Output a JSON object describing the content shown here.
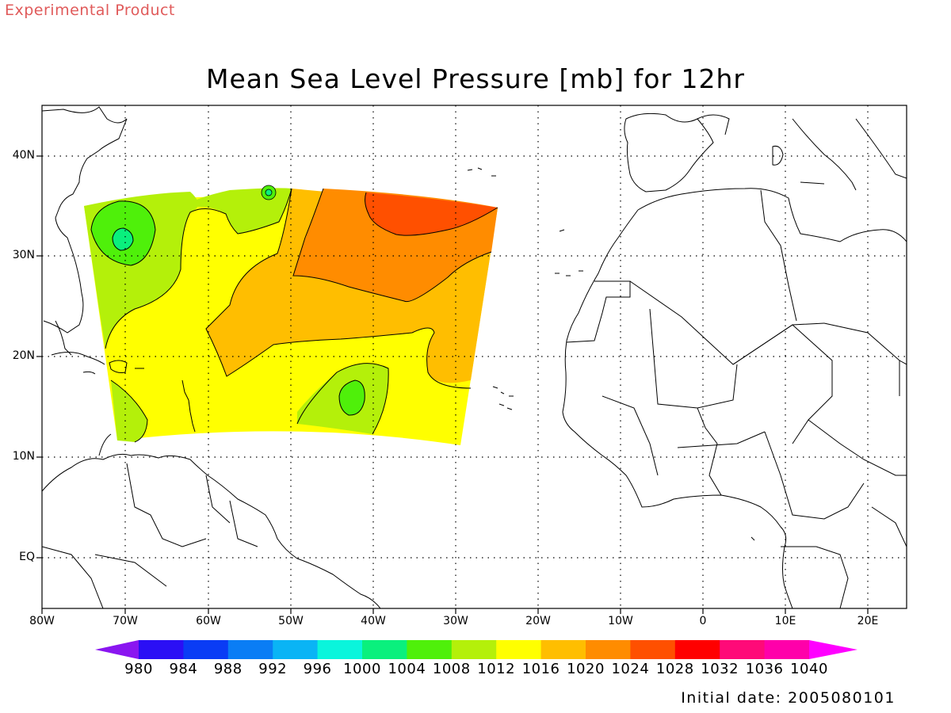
{
  "header": {
    "product_tag": "Experimental Product",
    "title": "Mean Sea Level Pressure [mb] for 12hr"
  },
  "map": {
    "lat_labels": [
      "40N",
      "30N",
      "20N",
      "10N",
      "EQ"
    ],
    "lon_labels": [
      "80W",
      "70W",
      "60W",
      "50W",
      "40W",
      "30W",
      "20W",
      "10W",
      "0",
      "10E",
      "20E"
    ],
    "grid": true,
    "land_fill": "#ffffff",
    "coastline_color": "#000000"
  },
  "colorbar": {
    "labels": [
      "980",
      "984",
      "988",
      "992",
      "996",
      "1000",
      "1004",
      "1008",
      "1012",
      "1016",
      "1020",
      "1024",
      "1028",
      "1032",
      "1036",
      "1040"
    ],
    "colors": [
      "#8a16f0",
      "#2b0ff5",
      "#0a3cf5",
      "#0a7df5",
      "#0ab4f5",
      "#0af5dc",
      "#0af07d",
      "#4ff00a",
      "#b4f00a",
      "#ffff00",
      "#ffbe00",
      "#ff8c00",
      "#ff5000",
      "#ff0000",
      "#ff0a78",
      "#ff00aa",
      "#ff00ff"
    ]
  },
  "footer": {
    "initial_date": "Initial date: 2005080101"
  },
  "legend_values_mb": [
    980,
    984,
    988,
    992,
    996,
    1000,
    1004,
    1008,
    1012,
    1016,
    1020,
    1024,
    1028,
    1032,
    1036,
    1040
  ]
}
